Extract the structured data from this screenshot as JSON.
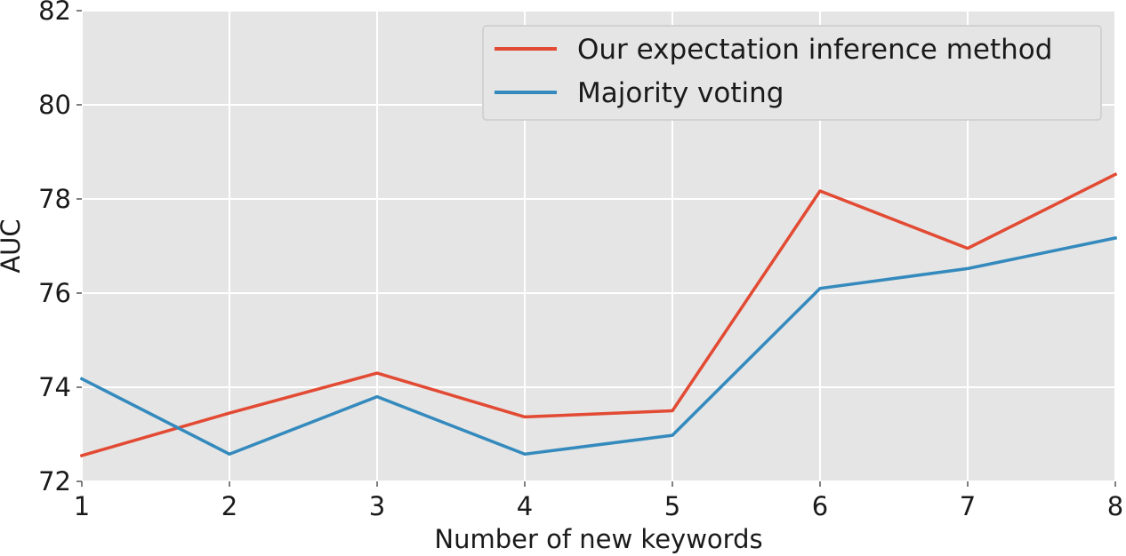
{
  "chart_data": {
    "type": "line",
    "title": "",
    "xlabel": "Number of new keywords",
    "ylabel": "AUC",
    "x": [
      1,
      2,
      3,
      4,
      5,
      6,
      7,
      8
    ],
    "xlim": [
      1,
      8
    ],
    "ylim": [
      72,
      82
    ],
    "xticks": [
      1,
      2,
      3,
      4,
      5,
      6,
      7,
      8
    ],
    "yticks": [
      72,
      74,
      76,
      78,
      80,
      82
    ],
    "grid": true,
    "background": "#e5e5e5",
    "legend_position": "top-right",
    "series": [
      {
        "name": "Our expectation inference method",
        "color": "#e24a33",
        "values": [
          72.55,
          73.45,
          74.3,
          73.37,
          73.5,
          78.17,
          76.95,
          78.52
        ]
      },
      {
        "name": "Majority voting",
        "color": "#348abd",
        "values": [
          74.18,
          72.58,
          73.8,
          72.58,
          72.98,
          76.1,
          76.52,
          77.17
        ]
      }
    ]
  }
}
